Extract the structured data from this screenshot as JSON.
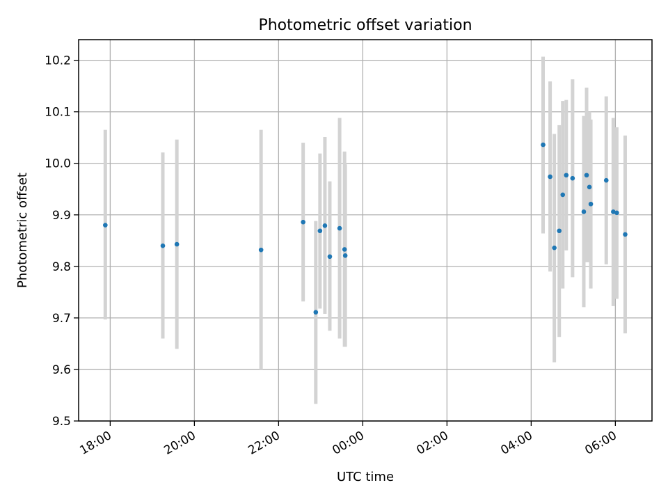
{
  "chart_data": {
    "type": "scatter",
    "title": "Photometric offset variation",
    "xlabel": "UTC time",
    "ylabel": "Photometric offset",
    "x_unit": "hours",
    "x_reference_label": "18:00 (day 1)",
    "xlim_hours": [
      17.25,
      30.87
    ],
    "ylim": [
      9.5,
      10.24
    ],
    "x_ticks": [
      {
        "hours": 18,
        "label": "18:00"
      },
      {
        "hours": 20,
        "label": "20:00"
      },
      {
        "hours": 22,
        "label": "22:00"
      },
      {
        "hours": 24,
        "label": "00:00"
      },
      {
        "hours": 26,
        "label": "02:00"
      },
      {
        "hours": 28,
        "label": "04:00"
      },
      {
        "hours": 30,
        "label": "06:00"
      }
    ],
    "y_ticks": [
      {
        "value": 9.5,
        "label": "9.5"
      },
      {
        "value": 9.6,
        "label": "9.6"
      },
      {
        "value": 9.7,
        "label": "9.7"
      },
      {
        "value": 9.8,
        "label": "9.8"
      },
      {
        "value": 9.9,
        "label": "9.9"
      },
      {
        "value": 10.0,
        "label": "10.0"
      },
      {
        "value": 10.1,
        "label": "10.1"
      },
      {
        "value": 10.2,
        "label": "10.2"
      }
    ],
    "grid": true,
    "colors": {
      "points": "#1f77b4",
      "error_bars": "#d3d3d3",
      "grid": "#b0b0b0"
    },
    "points": [
      {
        "time": "17:53",
        "y": 9.88,
        "err_low": 9.697,
        "err_high": 10.065
      },
      {
        "time": "19:15",
        "y": 9.84,
        "err_low": 9.66,
        "err_high": 10.021
      },
      {
        "time": "19:35",
        "y": 9.843,
        "err_low": 9.64,
        "err_high": 10.046
      },
      {
        "time": "21:35",
        "y": 9.832,
        "err_low": 9.6,
        "err_high": 10.065
      },
      {
        "time": "22:35",
        "y": 9.886,
        "err_low": 9.732,
        "err_high": 10.04
      },
      {
        "time": "22:53",
        "y": 9.711,
        "err_low": 9.533,
        "err_high": 9.888
      },
      {
        "time": "22:59",
        "y": 9.869,
        "err_low": 9.718,
        "err_high": 10.019
      },
      {
        "time": "23:06",
        "y": 9.879,
        "err_low": 9.708,
        "err_high": 10.051
      },
      {
        "time": "23:13",
        "y": 9.819,
        "err_low": 9.675,
        "err_high": 9.965
      },
      {
        "time": "23:27",
        "y": 9.874,
        "err_low": 9.66,
        "err_high": 10.088
      },
      {
        "time": "23:34",
        "y": 9.833,
        "err_low": 9.644,
        "err_high": 10.023
      },
      {
        "time": "23:35",
        "y": 9.821,
        "err_low": 9.644,
        "err_high": 9.998
      },
      {
        "time": "04:17",
        "y": 10.036,
        "err_low": 9.864,
        "err_high": 10.207
      },
      {
        "time": "04:27",
        "y": 9.974,
        "err_low": 9.79,
        "err_high": 10.159
      },
      {
        "time": "04:33",
        "y": 9.836,
        "err_low": 9.614,
        "err_high": 10.057
      },
      {
        "time": "04:40",
        "y": 9.869,
        "err_low": 9.663,
        "err_high": 10.074
      },
      {
        "time": "04:45",
        "y": 9.939,
        "err_low": 9.757,
        "err_high": 10.121
      },
      {
        "time": "04:50",
        "y": 9.977,
        "err_low": 9.831,
        "err_high": 10.123
      },
      {
        "time": "04:59",
        "y": 9.971,
        "err_low": 9.779,
        "err_high": 10.163
      },
      {
        "time": "05:15",
        "y": 9.906,
        "err_low": 9.721,
        "err_high": 10.092
      },
      {
        "time": "05:19",
        "y": 9.977,
        "err_low": 9.808,
        "err_high": 10.147
      },
      {
        "time": "05:23",
        "y": 9.954,
        "err_low": 9.808,
        "err_high": 10.1
      },
      {
        "time": "05:25",
        "y": 9.921,
        "err_low": 9.757,
        "err_high": 10.085
      },
      {
        "time": "05:47",
        "y": 9.967,
        "err_low": 9.804,
        "err_high": 10.13
      },
      {
        "time": "05:57",
        "y": 9.906,
        "err_low": 9.723,
        "err_high": 10.088
      },
      {
        "time": "06:02",
        "y": 9.904,
        "err_low": 9.737,
        "err_high": 10.07
      },
      {
        "time": "06:14",
        "y": 9.862,
        "err_low": 9.67,
        "err_high": 10.054
      }
    ]
  }
}
